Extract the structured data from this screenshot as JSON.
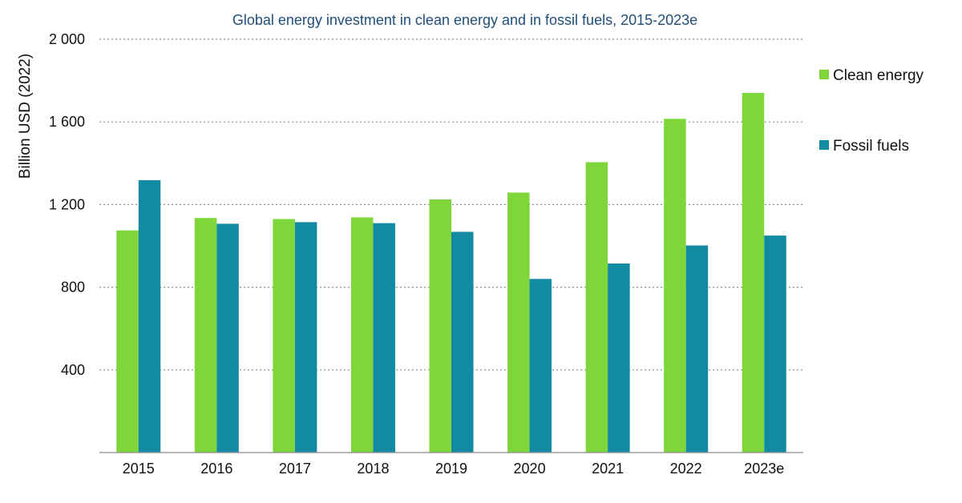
{
  "chart_data": {
    "type": "bar",
    "title": "Global energy investment in clean energy and in fossil fuels, 2015-2023e",
    "xlabel": "",
    "ylabel": "Billion USD (2022)",
    "categories": [
      "2015",
      "2016",
      "2017",
      "2018",
      "2019",
      "2020",
      "2021",
      "2022",
      "2023e"
    ],
    "series": [
      {
        "name": "Clean energy",
        "color": "#7ed63a",
        "values": [
          1075,
          1135,
          1130,
          1138,
          1225,
          1258,
          1405,
          1615,
          1740
        ]
      },
      {
        "name": "Fossil fuels",
        "color": "#128aa2",
        "values": [
          1318,
          1107,
          1115,
          1110,
          1068,
          840,
          915,
          1002,
          1050
        ]
      }
    ],
    "ylim": [
      0,
      2000
    ],
    "yticks": [
      400,
      800,
      1200,
      1600,
      2000
    ],
    "ytick_labels": [
      "400",
      "800",
      "1 200",
      "1 600",
      "2 000"
    ],
    "grid": true,
    "legend_position": "right"
  }
}
